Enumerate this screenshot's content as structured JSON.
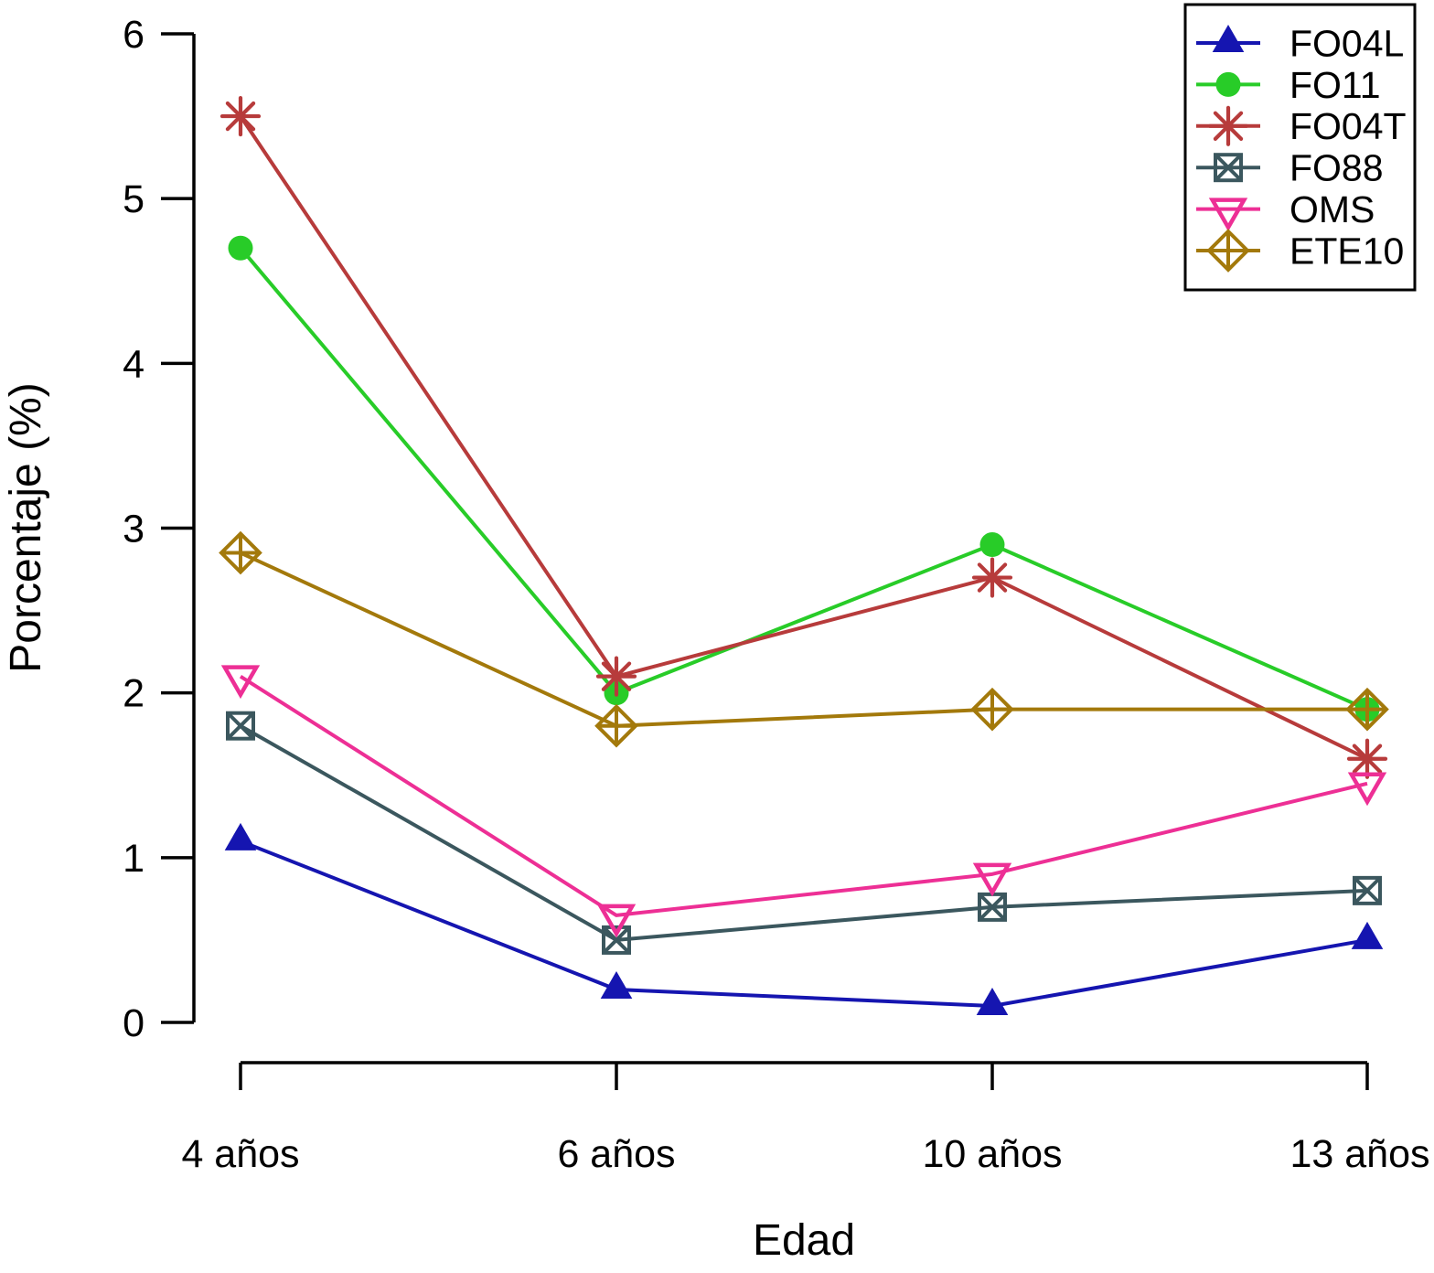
{
  "chart_data": {
    "type": "line",
    "title": "",
    "xlabel": "Edad",
    "ylabel": "Porcentaje (%)",
    "categories": [
      "4 años",
      "6 años",
      "10 años",
      "13 años"
    ],
    "ylim": [
      0,
      6
    ],
    "yticks": [
      0,
      1,
      2,
      3,
      4,
      5,
      6
    ],
    "grid": false,
    "legend_position": "top-right",
    "axis_color": "#000000",
    "background_color": "#ffffff",
    "series": [
      {
        "name": "FO04L",
        "color": "#1515b0",
        "marker": "triangle-up-filled",
        "values": [
          1.1,
          0.2,
          0.1,
          0.5
        ]
      },
      {
        "name": "FO11",
        "color": "#28cc28",
        "marker": "circle-filled",
        "values": [
          4.7,
          2.0,
          2.9,
          1.9
        ]
      },
      {
        "name": "FO04T",
        "color": "#b73b3b",
        "marker": "asterisk",
        "values": [
          5.5,
          2.1,
          2.7,
          1.6
        ]
      },
      {
        "name": "FO88",
        "color": "#3b575e",
        "marker": "square-x-open",
        "values": [
          1.8,
          0.5,
          0.7,
          0.8
        ]
      },
      {
        "name": "OMS",
        "color": "#ed2f95",
        "marker": "triangle-down-open",
        "values": [
          2.1,
          0.65,
          0.9,
          1.45
        ]
      },
      {
        "name": "ETE10",
        "color": "#a3790b",
        "marker": "diamond-plus-open",
        "values": [
          2.85,
          1.8,
          1.9,
          1.9
        ]
      }
    ]
  }
}
